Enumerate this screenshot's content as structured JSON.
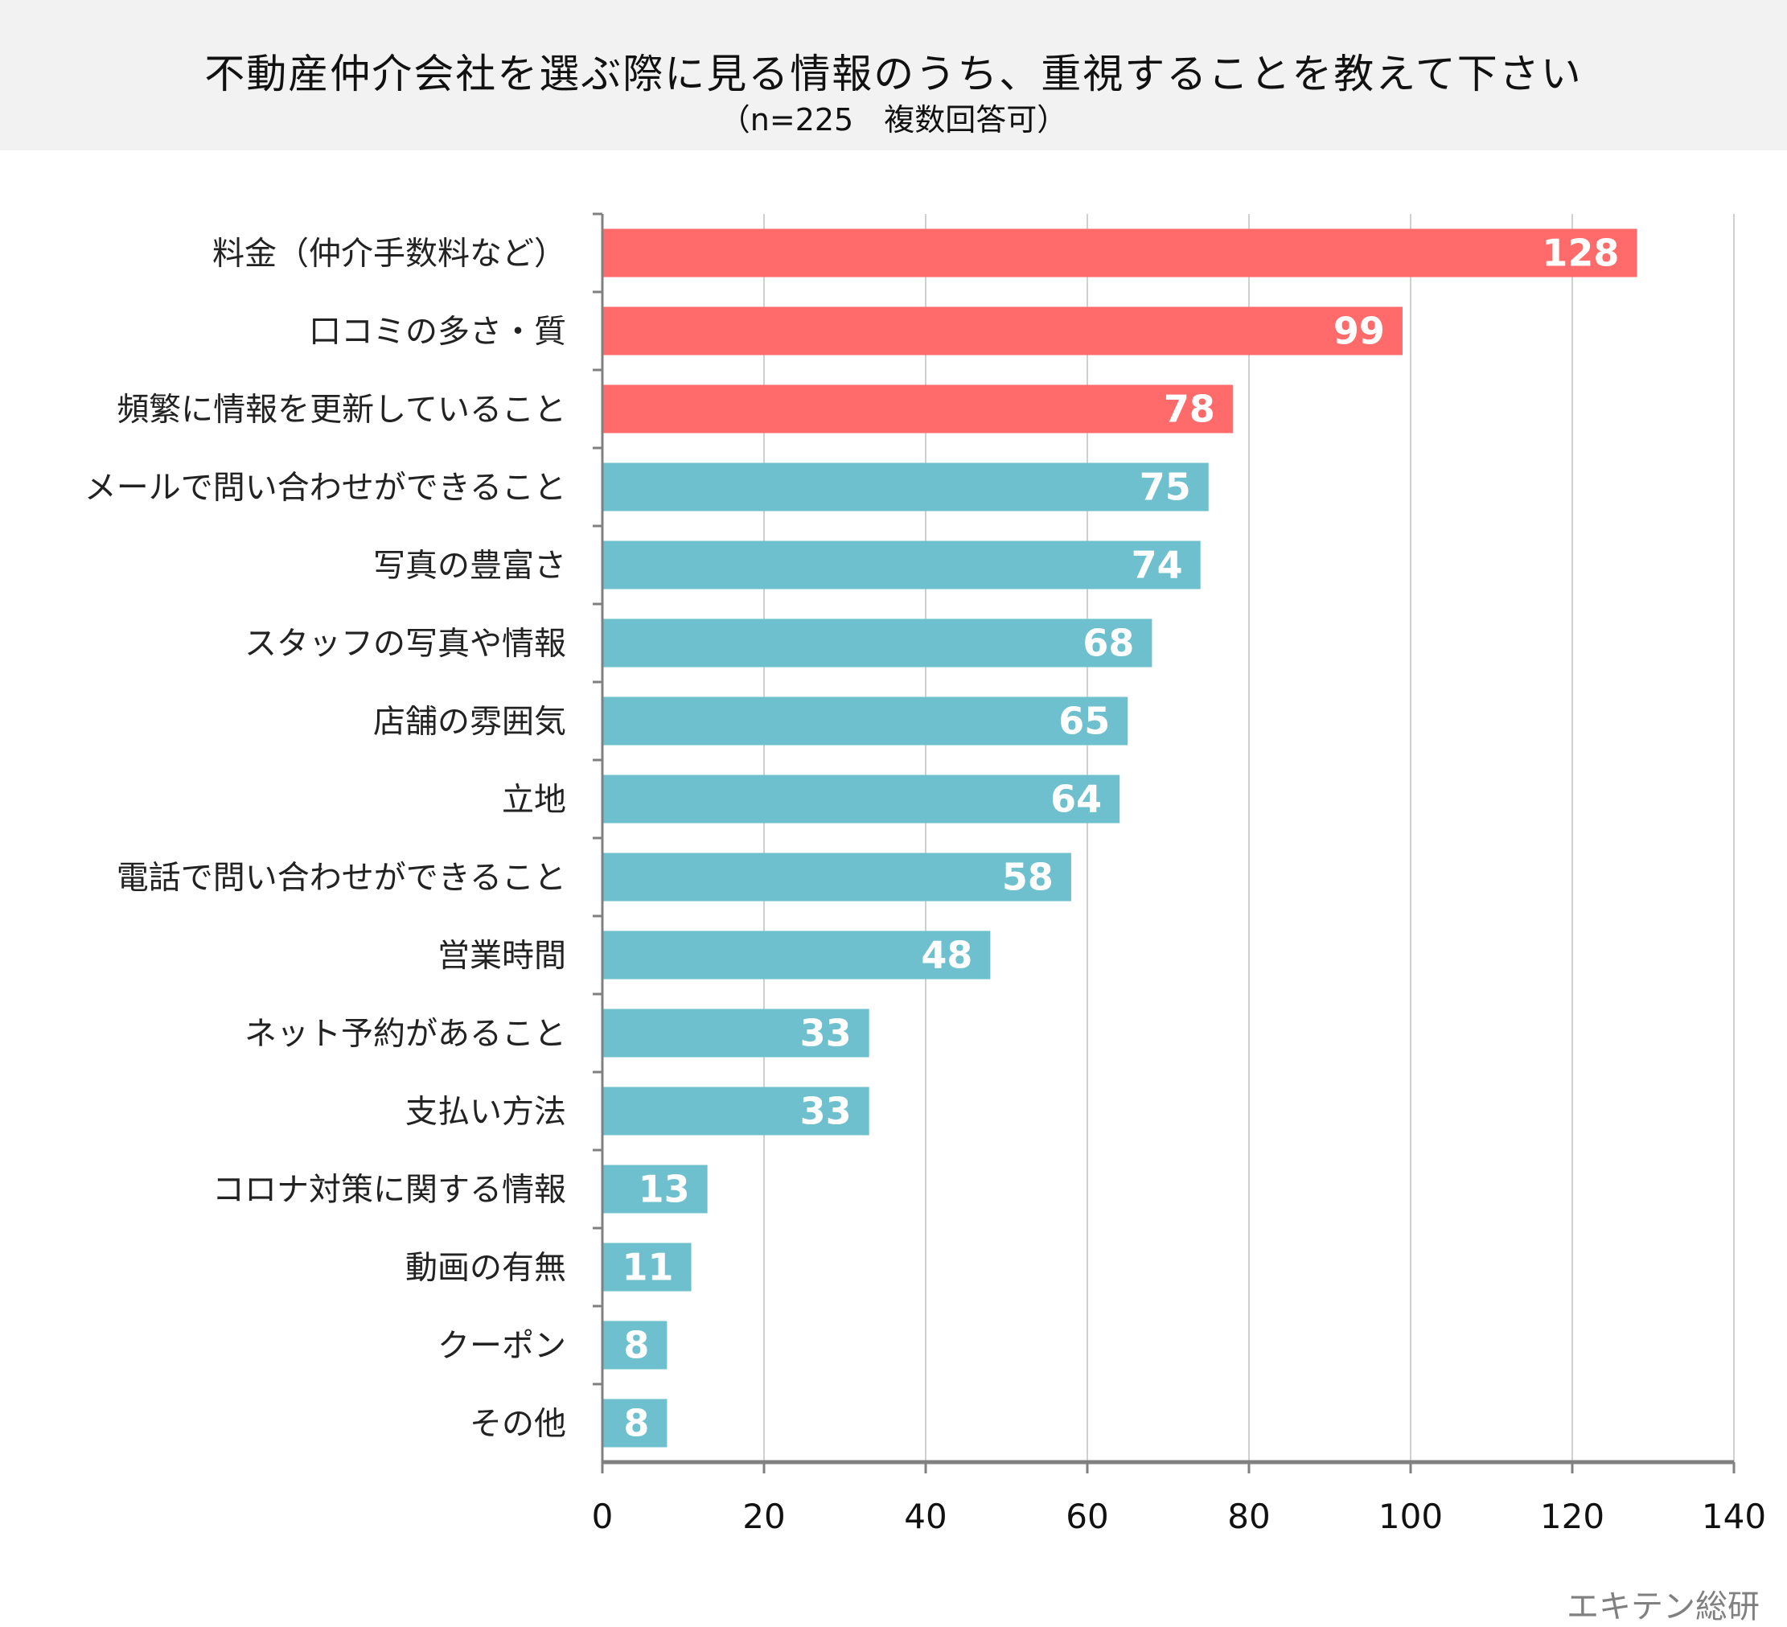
{
  "chart_data": {
    "type": "bar",
    "orientation": "horizontal",
    "title": "不動産仲介会社を選ぶ際に見る情報のうち、重視することを教えて下さい",
    "subtitle": "（n=225　複数回答可）",
    "categories": [
      "料金（仲介手数料など）",
      "口コミの多さ・質",
      "頻繁に情報を更新していること",
      "メールで問い合わせができること",
      "写真の豊富さ",
      "スタッフの写真や情報",
      "店舗の雰囲気",
      "立地",
      "電話で問い合わせができること",
      "営業時間",
      "ネット予約があること",
      "支払い方法",
      "コロナ対策に関する情報",
      "動画の有無",
      "クーポン",
      "その他"
    ],
    "values": [
      128,
      99,
      78,
      75,
      74,
      68,
      65,
      64,
      58,
      48,
      33,
      33,
      13,
      11,
      8,
      8
    ],
    "highlight_top": 3,
    "colors": {
      "highlight": "#FF6B6B",
      "default": "#6EC0CE",
      "grid": "#d0d0d0",
      "axis": "#808080"
    },
    "xlim": [
      0,
      140
    ],
    "xticks": [
      0,
      20,
      40,
      60,
      80,
      100,
      120,
      140
    ],
    "grid": true,
    "data_labels": true
  },
  "source": "エキテン総研"
}
